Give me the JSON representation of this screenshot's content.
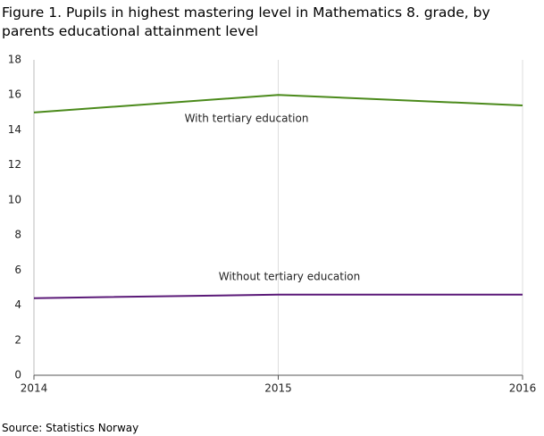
{
  "chart_data": {
    "type": "line",
    "title": "Figure 1. Pupils in highest mastering level in Mathematics 8. grade, by parents educational attainment level",
    "source": "Source: Statistics Norway",
    "x": [
      2014,
      2015,
      2016
    ],
    "series": [
      {
        "name": "With tertiary education",
        "color": "#4b8a1b",
        "values": [
          15.0,
          16.0,
          15.4
        ]
      },
      {
        "name": "Without tertiary education",
        "color": "#5b1a78",
        "values": [
          4.4,
          4.6,
          4.6
        ]
      }
    ],
    "xlim": [
      2014,
      2016
    ],
    "xticks": [
      2014,
      2015,
      2016
    ],
    "ylim": [
      0,
      18
    ],
    "yticks": [
      0,
      2,
      4,
      6,
      8,
      10,
      12,
      14,
      16,
      18
    ],
    "grid": "x"
  }
}
